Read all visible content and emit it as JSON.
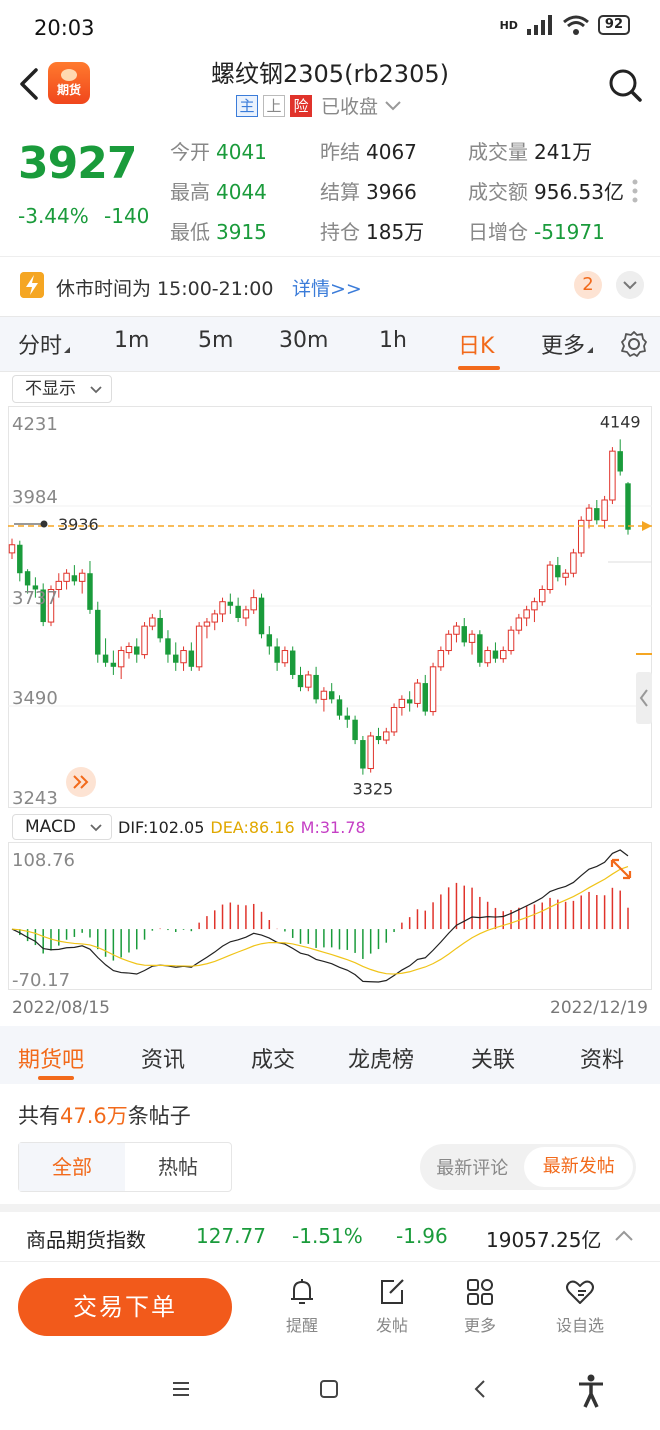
{
  "status_bar": {
    "time": "20:03",
    "network": "HD",
    "battery": "92"
  },
  "header": {
    "logo_text": "期货",
    "title": "螺纹钢2305(rb2305)",
    "tags": [
      "主",
      "上",
      "险"
    ],
    "market_state": "已收盘"
  },
  "quote": {
    "last_price": "3927",
    "change_pct": "-3.44%",
    "change_abs": "-140",
    "fields": [
      {
        "label": "今开",
        "value": "4041",
        "color": "green"
      },
      {
        "label": "昨结",
        "value": "4067",
        "color": "black"
      },
      {
        "label": "成交量",
        "value": "241万",
        "color": "black"
      },
      {
        "label": "最高",
        "value": "4044",
        "color": "green"
      },
      {
        "label": "结算",
        "value": "3966",
        "color": "black"
      },
      {
        "label": "成交额",
        "value": "956.53亿",
        "color": "black"
      },
      {
        "label": "最低",
        "value": "3915",
        "color": "green"
      },
      {
        "label": "持仓",
        "value": "185万",
        "color": "black"
      },
      {
        "label": "日增仓",
        "value": "-51971",
        "color": "green"
      }
    ]
  },
  "notice": {
    "text": "休市时间为 15:00-21:00",
    "link": "详情>>",
    "count": "2"
  },
  "period_tabs": [
    {
      "label": "分时",
      "active": false
    },
    {
      "label": "1m",
      "active": false
    },
    {
      "label": "5m",
      "active": false
    },
    {
      "label": "30m",
      "active": false
    },
    {
      "label": "1h",
      "active": false
    },
    {
      "label": "日K",
      "active": true
    },
    {
      "label": "更多",
      "active": false
    }
  ],
  "overlay_select": "不显示",
  "chart_data": {
    "type": "candlestick",
    "y_ticks": [
      "4231",
      "3984",
      "3737",
      "3490",
      "3243"
    ],
    "ylim": [
      3243,
      4231
    ],
    "max_label": "4149",
    "min_label": "3325",
    "reference_price": "3936",
    "candles_ohlc": [
      [
        3870,
        3905,
        3855,
        3890
      ],
      [
        3890,
        3900,
        3800,
        3820
      ],
      [
        3825,
        3830,
        3770,
        3790
      ],
      [
        3790,
        3810,
        3760,
        3780
      ],
      [
        3780,
        3795,
        3690,
        3700
      ],
      [
        3700,
        3790,
        3690,
        3780
      ],
      [
        3780,
        3820,
        3760,
        3800
      ],
      [
        3800,
        3830,
        3780,
        3820
      ],
      [
        3815,
        3840,
        3790,
        3800
      ],
      [
        3800,
        3830,
        3770,
        3820
      ],
      [
        3820,
        3850,
        3720,
        3730
      ],
      [
        3730,
        3750,
        3600,
        3620
      ],
      [
        3620,
        3660,
        3590,
        3600
      ],
      [
        3600,
        3630,
        3570,
        3590
      ],
      [
        3590,
        3640,
        3560,
        3630
      ],
      [
        3625,
        3650,
        3610,
        3640
      ],
      [
        3640,
        3660,
        3600,
        3620
      ],
      [
        3620,
        3700,
        3610,
        3690
      ],
      [
        3690,
        3720,
        3680,
        3710
      ],
      [
        3710,
        3730,
        3650,
        3660
      ],
      [
        3660,
        3680,
        3600,
        3620
      ],
      [
        3620,
        3650,
        3580,
        3600
      ],
      [
        3600,
        3640,
        3580,
        3630
      ],
      [
        3630,
        3650,
        3580,
        3590
      ],
      [
        3590,
        3700,
        3580,
        3690
      ],
      [
        3690,
        3710,
        3660,
        3700
      ],
      [
        3700,
        3730,
        3680,
        3720
      ],
      [
        3720,
        3760,
        3700,
        3750
      ],
      [
        3750,
        3770,
        3720,
        3740
      ],
      [
        3740,
        3760,
        3700,
        3710
      ],
      [
        3710,
        3740,
        3690,
        3730
      ],
      [
        3730,
        3780,
        3720,
        3760
      ],
      [
        3760,
        3770,
        3660,
        3670
      ],
      [
        3670,
        3690,
        3620,
        3640
      ],
      [
        3640,
        3660,
        3580,
        3600
      ],
      [
        3600,
        3640,
        3590,
        3630
      ],
      [
        3630,
        3640,
        3560,
        3570
      ],
      [
        3570,
        3590,
        3530,
        3540
      ],
      [
        3540,
        3580,
        3530,
        3570
      ],
      [
        3570,
        3590,
        3500,
        3510
      ],
      [
        3510,
        3540,
        3480,
        3530
      ],
      [
        3530,
        3550,
        3500,
        3510
      ],
      [
        3510,
        3520,
        3460,
        3470
      ],
      [
        3470,
        3490,
        3440,
        3460
      ],
      [
        3460,
        3470,
        3400,
        3410
      ],
      [
        3410,
        3420,
        3325,
        3340
      ],
      [
        3340,
        3430,
        3330,
        3420
      ],
      [
        3420,
        3440,
        3400,
        3410
      ],
      [
        3410,
        3440,
        3400,
        3430
      ],
      [
        3430,
        3500,
        3420,
        3490
      ],
      [
        3490,
        3520,
        3470,
        3510
      ],
      [
        3510,
        3530,
        3480,
        3500
      ],
      [
        3500,
        3560,
        3490,
        3550
      ],
      [
        3550,
        3570,
        3470,
        3480
      ],
      [
        3480,
        3600,
        3470,
        3590
      ],
      [
        3590,
        3640,
        3580,
        3630
      ],
      [
        3630,
        3680,
        3620,
        3670
      ],
      [
        3670,
        3700,
        3650,
        3690
      ],
      [
        3690,
        3710,
        3640,
        3650
      ],
      [
        3650,
        3680,
        3620,
        3670
      ],
      [
        3670,
        3680,
        3590,
        3600
      ],
      [
        3600,
        3640,
        3590,
        3630
      ],
      [
        3630,
        3650,
        3600,
        3610
      ],
      [
        3610,
        3640,
        3600,
        3630
      ],
      [
        3630,
        3690,
        3620,
        3680
      ],
      [
        3680,
        3720,
        3670,
        3710
      ],
      [
        3710,
        3740,
        3690,
        3730
      ],
      [
        3730,
        3760,
        3700,
        3750
      ],
      [
        3750,
        3790,
        3740,
        3780
      ],
      [
        3780,
        3850,
        3770,
        3840
      ],
      [
        3840,
        3860,
        3800,
        3810
      ],
      [
        3810,
        3830,
        3790,
        3820
      ],
      [
        3820,
        3880,
        3810,
        3870
      ],
      [
        3870,
        3960,
        3860,
        3950
      ],
      [
        3950,
        3990,
        3930,
        3980
      ],
      [
        3980,
        4000,
        3940,
        3950
      ],
      [
        3950,
        4010,
        3930,
        4000
      ],
      [
        4000,
        4130,
        3990,
        4120
      ],
      [
        4120,
        4149,
        4060,
        4070
      ],
      [
        4041,
        4044,
        3915,
        3927
      ]
    ],
    "macd": {
      "label": "MACD",
      "dif_label": "DIF:102.05",
      "dea_label": "DEA:86.16",
      "m_label": "M:31.78",
      "y_top": "108.76",
      "y_bottom": "-70.17",
      "ylim": [
        -70.17,
        108.76
      ]
    },
    "date_start": "2022/08/15",
    "date_end": "2022/12/19"
  },
  "content_tabs": [
    "期货吧",
    "资讯",
    "成交",
    "龙虎榜",
    "关联",
    "资料"
  ],
  "posts": {
    "prefix": "共有",
    "count": "47.6万",
    "suffix": "条帖子",
    "filter_all": "全部",
    "filter_hot": "热帖",
    "sort_comment": "最新评论",
    "sort_post": "最新发帖"
  },
  "index_ticker": {
    "name": "商品期货指数",
    "value": "127.77",
    "change_pct": "-1.51%",
    "change_abs": "-1.96",
    "amount": "19057.25亿"
  },
  "actions": {
    "order": "交易下单",
    "alert": "提醒",
    "post": "发帖",
    "more": "更多",
    "watchlist": "设自选"
  },
  "colors": {
    "up": "#e0332b",
    "down": "#1a9b3b",
    "accent": "#f26a1b",
    "dea": "#f0c419",
    "m": "#c53fc5"
  }
}
